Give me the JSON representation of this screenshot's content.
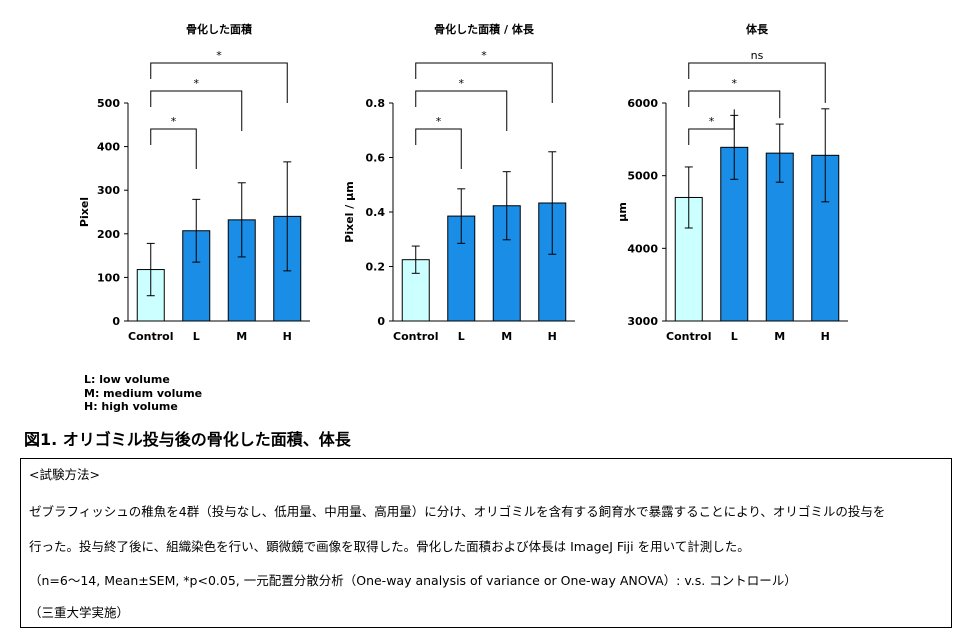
{
  "chart_data": [
    {
      "type": "bar",
      "title": "骨化した面積",
      "categories": [
        "Control",
        "L",
        "M",
        "H"
      ],
      "values": [
        118,
        207,
        232,
        240
      ],
      "errors": [
        60,
        72,
        85,
        125
      ],
      "ylabel": "Pixel",
      "ylim": [
        0,
        500
      ],
      "yticks": [
        "0",
        "100",
        "200",
        "300",
        "400",
        "500"
      ],
      "significance": [
        {
          "from": "Control",
          "to": "L",
          "label": "*"
        },
        {
          "from": "Control",
          "to": "M",
          "label": "*"
        },
        {
          "from": "Control",
          "to": "H",
          "label": "*"
        }
      ],
      "colors": {
        "control": "#ccffff",
        "treated": "#1a8ee6"
      },
      "grid": false
    },
    {
      "type": "bar",
      "title": "骨化した面積 / 体長",
      "categories": [
        "Control",
        "L",
        "M",
        "H"
      ],
      "values": [
        0.225,
        0.385,
        0.423,
        0.433
      ],
      "errors": [
        0.05,
        0.1,
        0.125,
        0.188
      ],
      "ylabel": "Pixel / µm",
      "ylim": [
        0,
        0.8
      ],
      "yticks": [
        "0",
        "0.2",
        "0.4",
        "0.6",
        "0.8"
      ],
      "significance": [
        {
          "from": "Control",
          "to": "L",
          "label": "*"
        },
        {
          "from": "Control",
          "to": "M",
          "label": "*"
        },
        {
          "from": "Control",
          "to": "H",
          "label": "*"
        }
      ],
      "colors": {
        "control": "#ccffff",
        "treated": "#1a8ee6"
      },
      "grid": false
    },
    {
      "type": "bar",
      "title": "体長",
      "categories": [
        "Control",
        "L",
        "M",
        "H"
      ],
      "values": [
        4700,
        5390,
        5310,
        5280
      ],
      "errors": [
        420,
        440,
        400,
        640
      ],
      "ylabel": "µm",
      "ylim": [
        3000,
        6000
      ],
      "yticks": [
        "3000",
        "4000",
        "5000",
        "6000"
      ],
      "significance": [
        {
          "from": "Control",
          "to": "L",
          "label": "*"
        },
        {
          "from": "Control",
          "to": "M",
          "label": "*"
        },
        {
          "from": "Control",
          "to": "H",
          "label": "ns"
        }
      ],
      "colors": {
        "control": "#ccffff",
        "treated": "#1a8ee6"
      },
      "grid": false
    }
  ],
  "legend": {
    "l": "L: low volume",
    "m": "M: medium volume",
    "h": "H: high volume"
  },
  "caption": "図1. オリゴミル投与後の骨化した面積、体長",
  "methods": {
    "heading": "<試験方法>",
    "line1": "ゼブラフィッシュの稚魚を4群（投与なし、低用量、中用量、高用量）に分け、オリゴミルを含有する飼育水で暴露することにより、オリゴミルの投与を",
    "line2": "行った。投与終了後に、組織染色を行い、顕微鏡で画像を取得した。骨化した面積および体長は ImageJ Fiji を用いて計測した。",
    "line3": "（n=6～14, Mean±SEM, *p<0.05, 一元配置分散分析（One-way analysis of variance or One-way ANOVA）: v.s. コントロール）",
    "line4": "（三重大学実施）"
  }
}
